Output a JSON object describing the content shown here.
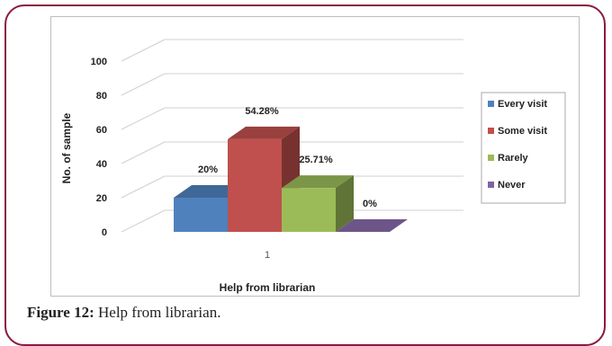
{
  "figure": {
    "caption_label": "Figure 12:",
    "caption_text": " Help from librarian."
  },
  "chart_data": {
    "type": "bar",
    "title": "",
    "xlabel": "Help from librarian",
    "ylabel": "No. of sample",
    "categories": [
      "1"
    ],
    "ylim": [
      0,
      100
    ],
    "yticks": [
      0,
      20,
      40,
      60,
      80,
      100
    ],
    "grid": true,
    "legend_position": "right",
    "series": [
      {
        "name": "Every visit",
        "values": [
          20
        ],
        "label": "20%",
        "color": "#4f81bd"
      },
      {
        "name": "Some visit",
        "values": [
          54.28
        ],
        "label": "54.28%",
        "color": "#c0504d"
      },
      {
        "name": "Rarely",
        "values": [
          25.71
        ],
        "label": "25.71%",
        "color": "#9bbb59"
      },
      {
        "name": "Never",
        "values": [
          0
        ],
        "label": "0%",
        "color": "#8064a2"
      }
    ]
  }
}
